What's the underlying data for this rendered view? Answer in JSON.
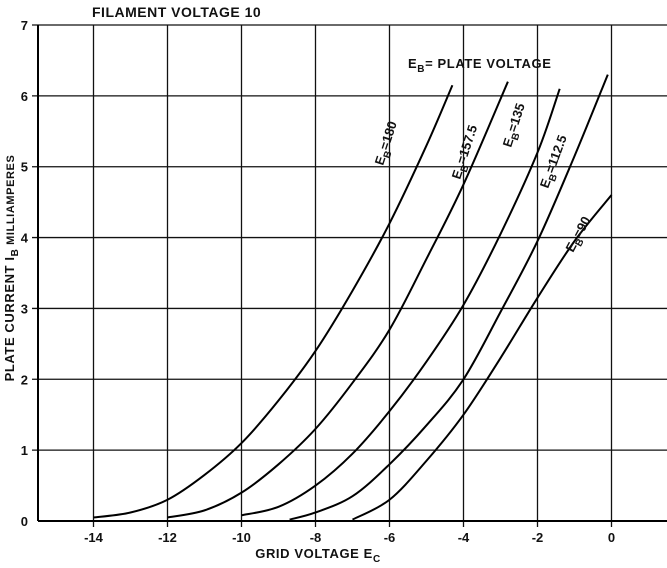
{
  "chart_data": {
    "type": "line",
    "title": "FILAMENT VOLTAGE 10",
    "xlabel": "GRID VOLTAGE E",
    "xlabel_sub": "C",
    "ylabel": "PLATE CURRENT I",
    "ylabel_sub": "B",
    "ylabel_suffix": " MILLIAMPERES",
    "legend_title": "E",
    "legend_title_sub": "B",
    "legend_title_suffix": "= PLATE VOLTAGE",
    "xlim": [
      -15.5,
      1.5
    ],
    "ylim": [
      0,
      7
    ],
    "x_ticks": [
      -14,
      -12,
      -10,
      -8,
      -6,
      -4,
      -2,
      0
    ],
    "x_tick_labels": [
      "-14",
      "-12",
      "-10",
      "-8",
      "-6",
      "-4",
      "-2",
      "0"
    ],
    "y_ticks": [
      0,
      1,
      2,
      3,
      4,
      5,
      6,
      7
    ],
    "y_tick_labels": [
      "0",
      "1",
      "2",
      "3",
      "4",
      "5",
      "6",
      "7"
    ],
    "grid": true,
    "series": [
      {
        "name": "E",
        "name_sub": "B",
        "name_suffix": "=180",
        "x": [
          -14,
          -13,
          -12,
          -11,
          -10,
          -9,
          -8,
          -7,
          -6,
          -5,
          -4.3
        ],
        "y": [
          0.05,
          0.12,
          0.3,
          0.65,
          1.1,
          1.7,
          2.4,
          3.25,
          4.2,
          5.3,
          6.15
        ]
      },
      {
        "name": "E",
        "name_sub": "B",
        "name_suffix": "=157.5",
        "x": [
          -12,
          -11,
          -10,
          -9,
          -8,
          -7,
          -6,
          -5,
          -4,
          -2.8
        ],
        "y": [
          0.05,
          0.15,
          0.4,
          0.8,
          1.3,
          1.95,
          2.7,
          3.7,
          4.75,
          6.2
        ]
      },
      {
        "name": "E",
        "name_sub": "B",
        "name_suffix": "=135",
        "x": [
          -10,
          -9,
          -8,
          -7,
          -6,
          -5,
          -4,
          -3,
          -2,
          -1.4
        ],
        "y": [
          0.08,
          0.2,
          0.5,
          0.95,
          1.55,
          2.25,
          3.05,
          4.05,
          5.2,
          6.1
        ]
      },
      {
        "name": "E",
        "name_sub": "B",
        "name_suffix": "=112.5",
        "x": [
          -8.7,
          -8,
          -7,
          -6,
          -5,
          -4,
          -3,
          -2,
          -1,
          -0.1
        ],
        "y": [
          0.02,
          0.12,
          0.35,
          0.8,
          1.35,
          2.0,
          2.95,
          3.95,
          5.15,
          6.3
        ]
      },
      {
        "name": "E",
        "name_sub": "B",
        "name_suffix": "=90",
        "x": [
          -7,
          -6,
          -5,
          -4,
          -3,
          -2,
          -1,
          0
        ],
        "y": [
          0.02,
          0.3,
          0.85,
          1.5,
          2.3,
          3.15,
          3.95,
          4.6
        ]
      }
    ]
  }
}
